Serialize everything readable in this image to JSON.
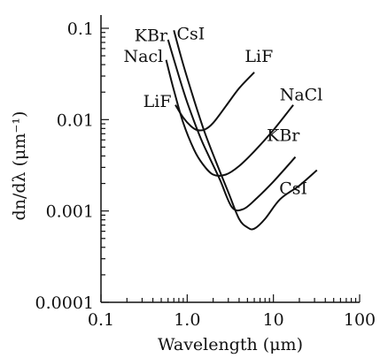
{
  "chart_data": {
    "type": "line",
    "xscale": "log",
    "yscale": "log",
    "xlim": [
      0.1,
      100
    ],
    "ylim": [
      0.0001,
      0.1
    ],
    "xlabel": "Wavelength (μm)",
    "ylabel": "dn/dλ (μm⁻¹)",
    "x_ticks": [
      0.1,
      1.0,
      10,
      100
    ],
    "x_tick_labels": [
      "0.1",
      "1.0",
      "10",
      "100"
    ],
    "y_ticks": [
      0.0001,
      0.001,
      0.01,
      0.1
    ],
    "y_tick_labels": [
      "0.0001",
      "0.001",
      "0.01",
      "0.1"
    ],
    "grid": false,
    "series": [
      {
        "name": "LiF",
        "x": [
          0.73,
          0.9,
          1.1,
          1.3,
          1.6,
          2.0,
          2.8,
          4.0,
          6.0
        ],
        "y": [
          0.0145,
          0.0105,
          0.0085,
          0.0077,
          0.0078,
          0.0092,
          0.014,
          0.022,
          0.033
        ]
      },
      {
        "name": "NaCl",
        "x": [
          0.57,
          0.7,
          0.9,
          1.2,
          1.5,
          2.0,
          2.8,
          4.0,
          6.0,
          10.0,
          17.0
        ],
        "y": [
          0.045,
          0.021,
          0.0092,
          0.0047,
          0.0033,
          0.0025,
          0.0025,
          0.0031,
          0.0045,
          0.0077,
          0.0145
        ]
      },
      {
        "name": "KBr",
        "x": [
          0.6,
          0.8,
          1.0,
          1.4,
          1.8,
          2.4,
          3.3,
          4.5,
          6.5,
          10.0,
          18.0
        ],
        "y": [
          0.075,
          0.03,
          0.0155,
          0.0066,
          0.0039,
          0.0022,
          0.0011,
          0.00105,
          0.0014,
          0.0021,
          0.0039
        ]
      },
      {
        "name": "CsI",
        "x": [
          0.7,
          0.9,
          1.2,
          1.6,
          2.2,
          3.0,
          4.0,
          5.0,
          6.0,
          8.0,
          12.0,
          20.0,
          32.0
        ],
        "y": [
          0.095,
          0.04,
          0.0165,
          0.0072,
          0.0033,
          0.0016,
          0.00082,
          0.00066,
          0.00064,
          0.00082,
          0.00135,
          0.0019,
          0.0028
        ]
      }
    ],
    "annotations": [
      {
        "text": "KBr",
        "x": 0.38,
        "y": 0.085
      },
      {
        "text": "CsI",
        "x": 1.1,
        "y": 0.088
      },
      {
        "text": "Nacl",
        "x": 0.31,
        "y": 0.05
      },
      {
        "text": "LiF",
        "x": 0.45,
        "y": 0.016
      },
      {
        "text": "LiF",
        "x": 6.8,
        "y": 0.05
      },
      {
        "text": "NaCl",
        "x": 21,
        "y": 0.019
      },
      {
        "text": "KBr",
        "x": 13,
        "y": 0.0068
      },
      {
        "text": "CsI",
        "x": 17,
        "y": 0.0018
      }
    ]
  }
}
